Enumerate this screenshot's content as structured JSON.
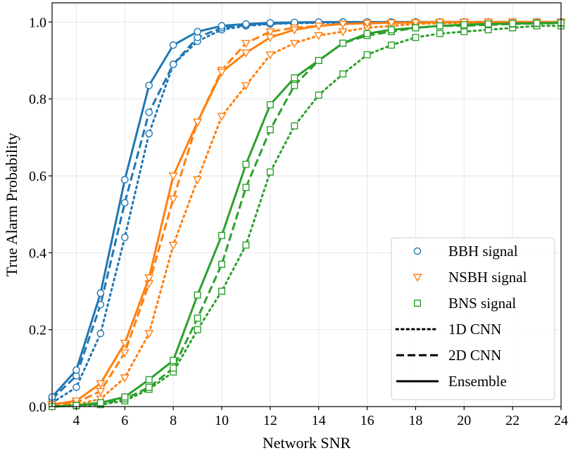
{
  "chart_data": {
    "type": "line",
    "title": "",
    "xlabel": "Network SNR",
    "ylabel": "True Alarm Probability",
    "xlim": [
      3,
      24
    ],
    "ylim": [
      0,
      1.05
    ],
    "xticks": [
      4,
      6,
      8,
      10,
      12,
      14,
      16,
      18,
      20,
      22,
      24
    ],
    "yticks": [
      0.0,
      0.2,
      0.4,
      0.6,
      0.8,
      1.0
    ],
    "xtick_labels": [
      "4",
      "6",
      "8",
      "10",
      "12",
      "14",
      "16",
      "18",
      "20",
      "22",
      "24"
    ],
    "ytick_labels": [
      "0.0",
      "0.2",
      "0.4",
      "0.6",
      "0.8",
      "1.0"
    ],
    "grid": true,
    "legend_position": "lower-right",
    "legend": [
      {
        "label": "BBH signal",
        "kind": "marker",
        "marker": "circle",
        "color": "#1f77b4"
      },
      {
        "label": "NSBH signal",
        "kind": "marker",
        "marker": "triangle-down",
        "color": "#ff7f0e"
      },
      {
        "label": "BNS signal",
        "kind": "marker",
        "marker": "square",
        "color": "#2ca02c"
      },
      {
        "label": "1D CNN",
        "kind": "line",
        "style": "dotted",
        "color": "#000000"
      },
      {
        "label": "2D CNN",
        "kind": "line",
        "style": "dashed",
        "color": "#000000"
      },
      {
        "label": "Ensemble",
        "kind": "line",
        "style": "solid",
        "color": "#000000"
      }
    ],
    "x": [
      3,
      4,
      5,
      6,
      7,
      8,
      9,
      10,
      11,
      12,
      13,
      14,
      15,
      16,
      17,
      18,
      19,
      20,
      21,
      22,
      23,
      24
    ],
    "series": [
      {
        "name": "BBH 1D CNN",
        "signal": "BBH",
        "model": "1D CNN",
        "color": "#1f77b4",
        "marker": "circle",
        "style": "dotted",
        "values": [
          0.01,
          0.05,
          0.19,
          0.44,
          0.71,
          0.89,
          0.95,
          0.98,
          0.99,
          0.995,
          0.997,
          0.998,
          0.999,
          0.999,
          1.0,
          1.0,
          1.0,
          1.0,
          1.0,
          1.0,
          1.0,
          1.0
        ]
      },
      {
        "name": "BBH 2D CNN",
        "signal": "BBH",
        "model": "2D CNN",
        "color": "#1f77b4",
        "marker": "circle",
        "style": "dashed",
        "values": [
          0.02,
          0.08,
          0.265,
          0.53,
          0.765,
          0.89,
          0.96,
          0.985,
          0.992,
          0.996,
          0.998,
          0.999,
          1.0,
          1.0,
          1.0,
          1.0,
          1.0,
          1.0,
          1.0,
          1.0,
          1.0,
          1.0
        ]
      },
      {
        "name": "BBH Ensemble",
        "signal": "BBH",
        "model": "Ensemble",
        "color": "#1f77b4",
        "marker": "circle",
        "style": "solid",
        "values": [
          0.025,
          0.095,
          0.295,
          0.59,
          0.835,
          0.94,
          0.975,
          0.99,
          0.995,
          0.998,
          0.999,
          1.0,
          1.0,
          1.0,
          1.0,
          1.0,
          1.0,
          1.0,
          1.0,
          1.0,
          1.0,
          1.0
        ]
      },
      {
        "name": "NSBH 1D CNN",
        "signal": "NSBH",
        "model": "1D CNN",
        "color": "#ff7f0e",
        "marker": "triangle-down",
        "style": "dotted",
        "values": [
          0.0,
          0.005,
          0.02,
          0.075,
          0.19,
          0.42,
          0.59,
          0.755,
          0.835,
          0.915,
          0.945,
          0.965,
          0.975,
          0.985,
          0.99,
          0.995,
          0.997,
          0.998,
          0.999,
          1.0,
          1.0,
          1.0
        ]
      },
      {
        "name": "NSBH 2D CNN",
        "signal": "NSBH",
        "model": "2D CNN",
        "color": "#ff7f0e",
        "marker": "triangle-down",
        "style": "dashed",
        "values": [
          0.005,
          0.01,
          0.04,
          0.14,
          0.32,
          0.54,
          0.74,
          0.875,
          0.945,
          0.975,
          0.985,
          0.99,
          0.995,
          0.997,
          0.998,
          0.999,
          1.0,
          1.0,
          1.0,
          1.0,
          1.0,
          1.0
        ]
      },
      {
        "name": "NSBH Ensemble",
        "signal": "NSBH",
        "model": "Ensemble",
        "color": "#ff7f0e",
        "marker": "triangle-down",
        "style": "solid",
        "values": [
          0.005,
          0.015,
          0.06,
          0.165,
          0.335,
          0.6,
          0.74,
          0.87,
          0.92,
          0.96,
          0.98,
          0.99,
          0.995,
          0.997,
          0.998,
          0.999,
          1.0,
          1.0,
          1.0,
          1.0,
          1.0,
          1.0
        ]
      },
      {
        "name": "BNS 1D CNN",
        "signal": "BNS",
        "model": "1D CNN",
        "color": "#2ca02c",
        "marker": "square",
        "style": "dotted",
        "values": [
          0.0,
          0.002,
          0.005,
          0.015,
          0.045,
          0.09,
          0.2,
          0.3,
          0.42,
          0.61,
          0.73,
          0.81,
          0.865,
          0.915,
          0.94,
          0.96,
          0.97,
          0.975,
          0.98,
          0.985,
          0.99,
          0.99
        ]
      },
      {
        "name": "BNS 2D CNN",
        "signal": "BNS",
        "model": "2D CNN",
        "color": "#2ca02c",
        "marker": "square",
        "style": "dashed",
        "values": [
          0.0,
          0.003,
          0.008,
          0.02,
          0.05,
          0.1,
          0.23,
          0.37,
          0.57,
          0.72,
          0.835,
          0.9,
          0.945,
          0.965,
          0.975,
          0.985,
          0.99,
          0.99,
          0.993,
          0.995,
          0.996,
          0.997
        ]
      },
      {
        "name": "BNS Ensemble",
        "signal": "BNS",
        "model": "Ensemble",
        "color": "#2ca02c",
        "marker": "square",
        "style": "solid",
        "values": [
          0.0,
          0.003,
          0.01,
          0.025,
          0.07,
          0.12,
          0.29,
          0.445,
          0.63,
          0.785,
          0.855,
          0.9,
          0.945,
          0.97,
          0.98,
          0.985,
          0.99,
          0.993,
          0.995,
          0.996,
          0.997,
          0.998
        ]
      }
    ]
  }
}
